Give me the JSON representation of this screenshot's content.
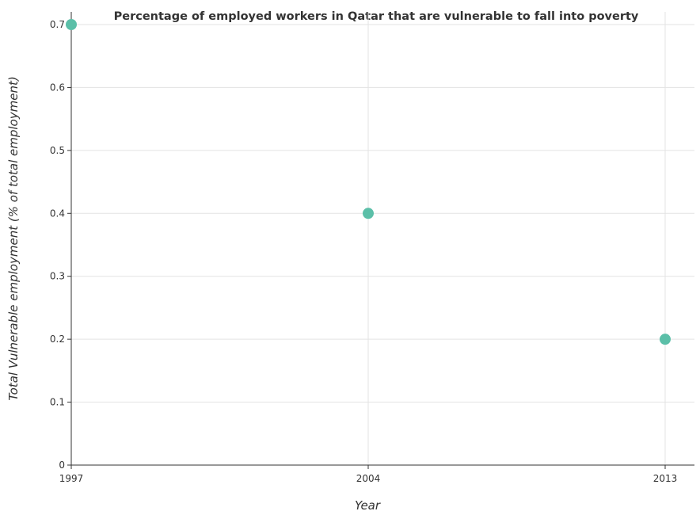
{
  "chart_data": {
    "type": "scatter",
    "title": "Percentage of employed workers in Qatar that are vulnerable to fall into poverty",
    "xlabel": "Year",
    "ylabel": "Total Vulnerable employment (% of total employment)",
    "categories": [
      "1997",
      "2004",
      "2013"
    ],
    "values": [
      0.7,
      0.4,
      0.2
    ],
    "y_ticks": [
      "0",
      "0.1",
      "0.2",
      "0.3",
      "0.4",
      "0.5",
      "0.6",
      "0.7"
    ],
    "ylim": [
      0,
      0.7
    ],
    "grid": true,
    "marker_color": "#5bbfa8"
  }
}
